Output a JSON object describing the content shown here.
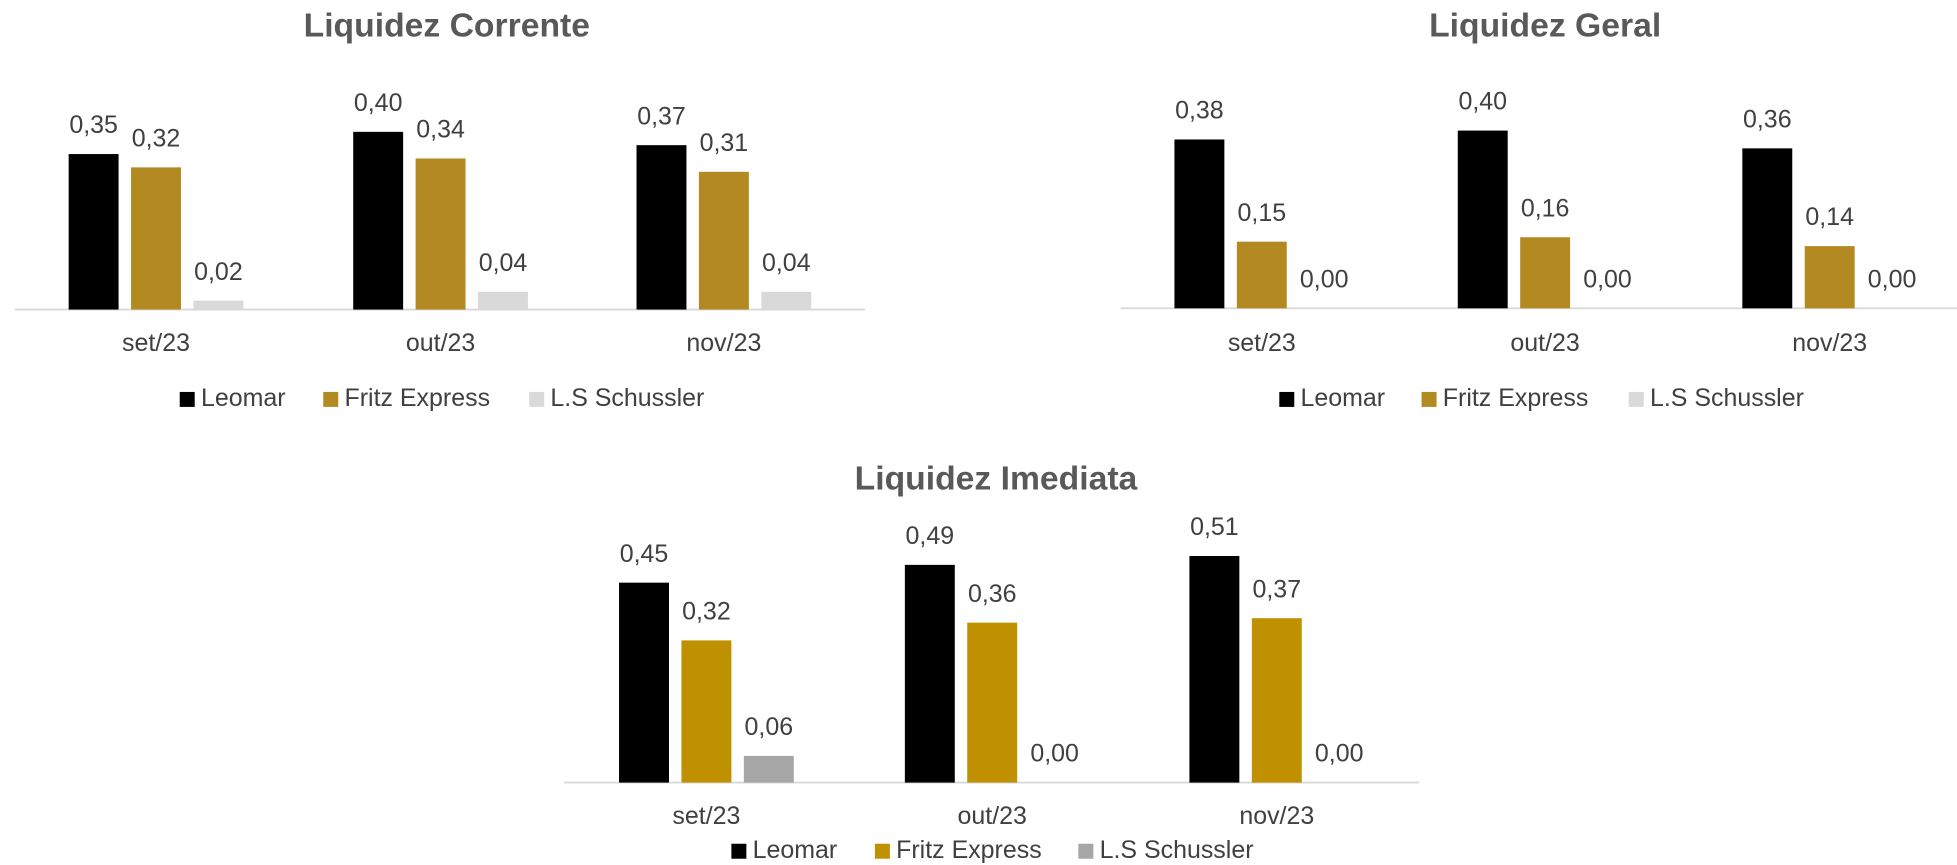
{
  "chart_data": [
    {
      "type": "bar",
      "title": "Liquidez Corrente",
      "categories": [
        "set/23",
        "out/23",
        "nov/23"
      ],
      "series": [
        {
          "name": "Leomar",
          "color": "#000000",
          "values": [
            0.35,
            0.4,
            0.37
          ],
          "value_labels": [
            "0,35",
            "0,40",
            "0,37"
          ]
        },
        {
          "name": "Fritz Express",
          "color": "#b38a22",
          "values": [
            0.32,
            0.34,
            0.31
          ],
          "value_labels": [
            "0,32",
            "0,34",
            "0,31"
          ]
        },
        {
          "name": "L.S Schussler",
          "color": "#d9d9d9",
          "values": [
            0.02,
            0.04,
            0.04
          ],
          "value_labels": [
            "0,02",
            "0,04",
            "0,04"
          ]
        }
      ]
    },
    {
      "type": "bar",
      "title": "Liquidez Geral",
      "categories": [
        "set/23",
        "out/23",
        "nov/23"
      ],
      "series": [
        {
          "name": "Leomar",
          "color": "#000000",
          "values": [
            0.38,
            0.4,
            0.36
          ],
          "value_labels": [
            "0,38",
            "0,40",
            "0,36"
          ]
        },
        {
          "name": "Fritz Express",
          "color": "#b38a22",
          "values": [
            0.15,
            0.16,
            0.14
          ],
          "value_labels": [
            "0,15",
            "0,16",
            "0,14"
          ]
        },
        {
          "name": "L.S Schussler",
          "color": "#d9d9d9",
          "values": [
            0.0,
            0.0,
            0.0
          ],
          "value_labels": [
            "0,00",
            "0,00",
            "0,00"
          ]
        }
      ]
    },
    {
      "type": "bar",
      "title": "Liquidez Imediata",
      "categories": [
        "set/23",
        "out/23",
        "nov/23"
      ],
      "series": [
        {
          "name": "Leomar",
          "color": "#000000",
          "values": [
            0.45,
            0.49,
            0.51
          ],
          "value_labels": [
            "0,45",
            "0,49",
            "0,51"
          ]
        },
        {
          "name": "Fritz Express",
          "color": "#bf9000",
          "values": [
            0.32,
            0.36,
            0.37
          ],
          "value_labels": [
            "0,32",
            "0,36",
            "0,37"
          ]
        },
        {
          "name": "L.S Schussler",
          "color": "#a6a6a6",
          "values": [
            0.06,
            0.0,
            0.0
          ],
          "value_labels": [
            "0,06",
            "0,00",
            "0,00"
          ]
        }
      ]
    }
  ]
}
